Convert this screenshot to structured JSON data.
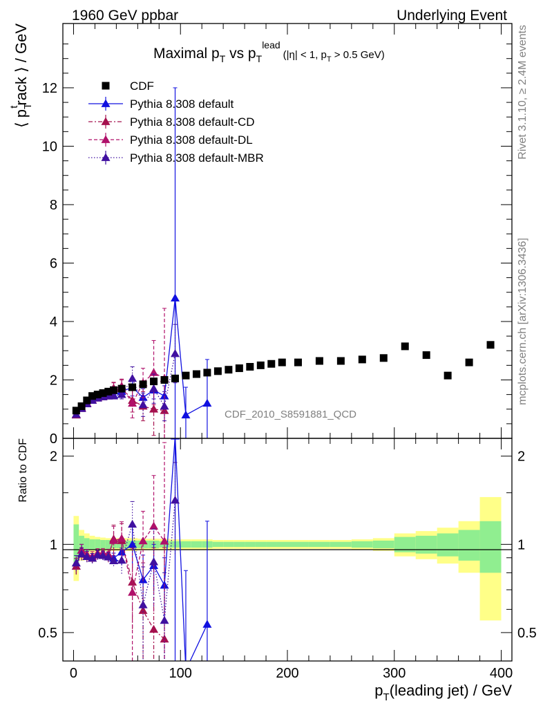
{
  "header": {
    "left": "1960 GeV ppbar",
    "right": "Underlying Event"
  },
  "chart_data": {
    "type": "scatter",
    "title": {
      "main": "Maximal p",
      "main_sub": "T",
      "mid": " vs p",
      "mid_sub": "T",
      "mid_sup": "lead",
      "cuts": "(|η| < 1, p",
      "cuts_sub": "T",
      "cuts_end": " > 0.5 GeV)"
    },
    "xlabel": {
      "main": "p",
      "sub": "T",
      "rest": "(leading jet) / GeV"
    },
    "ylabel": {
      "a": "⟨ p",
      "sub": "T",
      "sup": "t",
      "b": "rack ⟩ / GeV"
    },
    "ratio_ylabel": "Ratio to CDF",
    "xlim": [
      -10,
      410
    ],
    "ylim": [
      0,
      14.2
    ],
    "ratio_ylim": [
      0.4,
      2.3
    ],
    "ratio_scale": "log",
    "x_ticks": [
      "0",
      "100",
      "200",
      "300",
      "400"
    ],
    "y_ticks": [
      "0",
      "2",
      "4",
      "6",
      "8",
      "10",
      "12"
    ],
    "ratio_ticks": [
      "0.5",
      "1",
      "2"
    ],
    "analysis_label": "CDF_2010_S8591881_QCD",
    "side_label_top": "Rivet 3.1.10, ≥ 2.4M events",
    "side_label_bottom": "mcplots.cern.ch [arXiv:1306.3436]",
    "legend_position": "top-left",
    "colors": {
      "data": "#000000",
      "default": "#1010e0",
      "cd": "#a5104d",
      "dl": "#b0106a",
      "mbr": "#4010a0",
      "band_inner": "#90ee90",
      "band_outer": "#ffff88"
    },
    "data": {
      "name": "CDF",
      "x": [
        2.5,
        7.5,
        12.5,
        17.5,
        22.5,
        27.5,
        32.5,
        37.5,
        45,
        55,
        65,
        75,
        85,
        95,
        105,
        115,
        125,
        135,
        145,
        155,
        165,
        175,
        185,
        195,
        210,
        230,
        250,
        270,
        290,
        310,
        330,
        350,
        370,
        390
      ],
      "y": [
        0.95,
        1.1,
        1.3,
        1.45,
        1.5,
        1.55,
        1.6,
        1.65,
        1.7,
        1.75,
        1.85,
        1.95,
        2.0,
        2.05,
        2.15,
        2.2,
        2.25,
        2.3,
        2.35,
        2.4,
        2.45,
        2.5,
        2.55,
        2.6,
        2.6,
        2.65,
        2.65,
        2.7,
        2.75,
        3.15,
        2.85,
        2.15,
        2.6,
        3.2
      ]
    },
    "ratio_band": {
      "x_edges": [
        0,
        5,
        10,
        15,
        20,
        25,
        30,
        35,
        40,
        50,
        60,
        70,
        80,
        90,
        100,
        110,
        120,
        130,
        140,
        150,
        160,
        170,
        180,
        190,
        200,
        220,
        240,
        260,
        280,
        300,
        320,
        340,
        360,
        380,
        400
      ],
      "inner": [
        0.17,
        0.07,
        0.05,
        0.04,
        0.04,
        0.035,
        0.035,
        0.03,
        0.03,
        0.03,
        0.03,
        0.03,
        0.025,
        0.025,
        0.025,
        0.025,
        0.025,
        0.02,
        0.02,
        0.02,
        0.02,
        0.02,
        0.02,
        0.02,
        0.02,
        0.02,
        0.02,
        0.025,
        0.03,
        0.06,
        0.07,
        0.09,
        0.12,
        0.2
      ],
      "outer": [
        0.25,
        0.12,
        0.09,
        0.07,
        0.06,
        0.055,
        0.05,
        0.05,
        0.05,
        0.05,
        0.045,
        0.045,
        0.045,
        0.04,
        0.04,
        0.04,
        0.04,
        0.035,
        0.035,
        0.035,
        0.035,
        0.035,
        0.035,
        0.035,
        0.035,
        0.035,
        0.035,
        0.04,
        0.05,
        0.09,
        0.11,
        0.14,
        0.2,
        0.45
      ]
    },
    "series": [
      {
        "name": "Pythia 8.308 default",
        "style": "solid",
        "x": [
          2.5,
          7.5,
          12.5,
          17.5,
          22.5,
          27.5,
          32.5,
          37.5,
          45,
          55,
          65,
          75,
          85,
          95,
          105,
          125
        ],
        "y": [
          0.8,
          1.05,
          1.2,
          1.3,
          1.38,
          1.42,
          1.45,
          1.48,
          1.6,
          1.75,
          1.4,
          1.65,
          1.45,
          4.8,
          0.8,
          1.2
        ],
        "err": [
          0.05,
          0.05,
          0.05,
          0.05,
          0.05,
          0.05,
          0.05,
          0.06,
          0.15,
          0.3,
          0.3,
          0.3,
          0.35,
          7.2,
          0.95,
          1.5
        ]
      },
      {
        "name": "Pythia 8.308 default-CD",
        "style": "dashdot",
        "x": [
          2.5,
          7.5,
          12.5,
          17.5,
          22.5,
          27.5,
          32.5,
          37.5,
          45,
          55,
          65,
          75,
          85
        ],
        "y": [
          0.8,
          1.02,
          1.18,
          1.3,
          1.38,
          1.42,
          1.45,
          1.72,
          1.75,
          1.3,
          1.1,
          1.0,
          0.95
        ],
        "err": [
          0.05,
          0.05,
          0.05,
          0.05,
          0.05,
          0.05,
          0.06,
          0.2,
          0.25,
          0.4,
          0.5,
          0.9,
          1.0
        ]
      },
      {
        "name": "Pythia 8.308 default-DL",
        "style": "dashed",
        "x": [
          2.5,
          7.5,
          12.5,
          17.5,
          22.5,
          27.5,
          32.5,
          37.5,
          45,
          55,
          65,
          75,
          85
        ],
        "y": [
          0.82,
          1.05,
          1.2,
          1.32,
          1.4,
          1.45,
          1.48,
          1.7,
          1.78,
          1.2,
          1.9,
          2.25,
          2.05
        ],
        "err": [
          0.05,
          0.05,
          0.05,
          0.05,
          0.05,
          0.05,
          0.06,
          0.2,
          0.25,
          0.5,
          0.5,
          1.1,
          2.4
        ]
      },
      {
        "name": "Pythia 8.308 default-MBR",
        "style": "dotted",
        "x": [
          2.5,
          7.5,
          12.5,
          17.5,
          22.5,
          27.5,
          32.5,
          37.5,
          45,
          55,
          65,
          75,
          85,
          95
        ],
        "y": [
          0.82,
          1.02,
          1.18,
          1.3,
          1.38,
          1.42,
          1.45,
          1.45,
          1.5,
          2.05,
          1.15,
          1.7,
          1.1,
          2.9
        ],
        "err": [
          0.05,
          0.05,
          0.05,
          0.05,
          0.05,
          0.05,
          0.05,
          0.06,
          0.15,
          0.4,
          0.4,
          0.5,
          0.5,
          1.0
        ]
      }
    ]
  }
}
